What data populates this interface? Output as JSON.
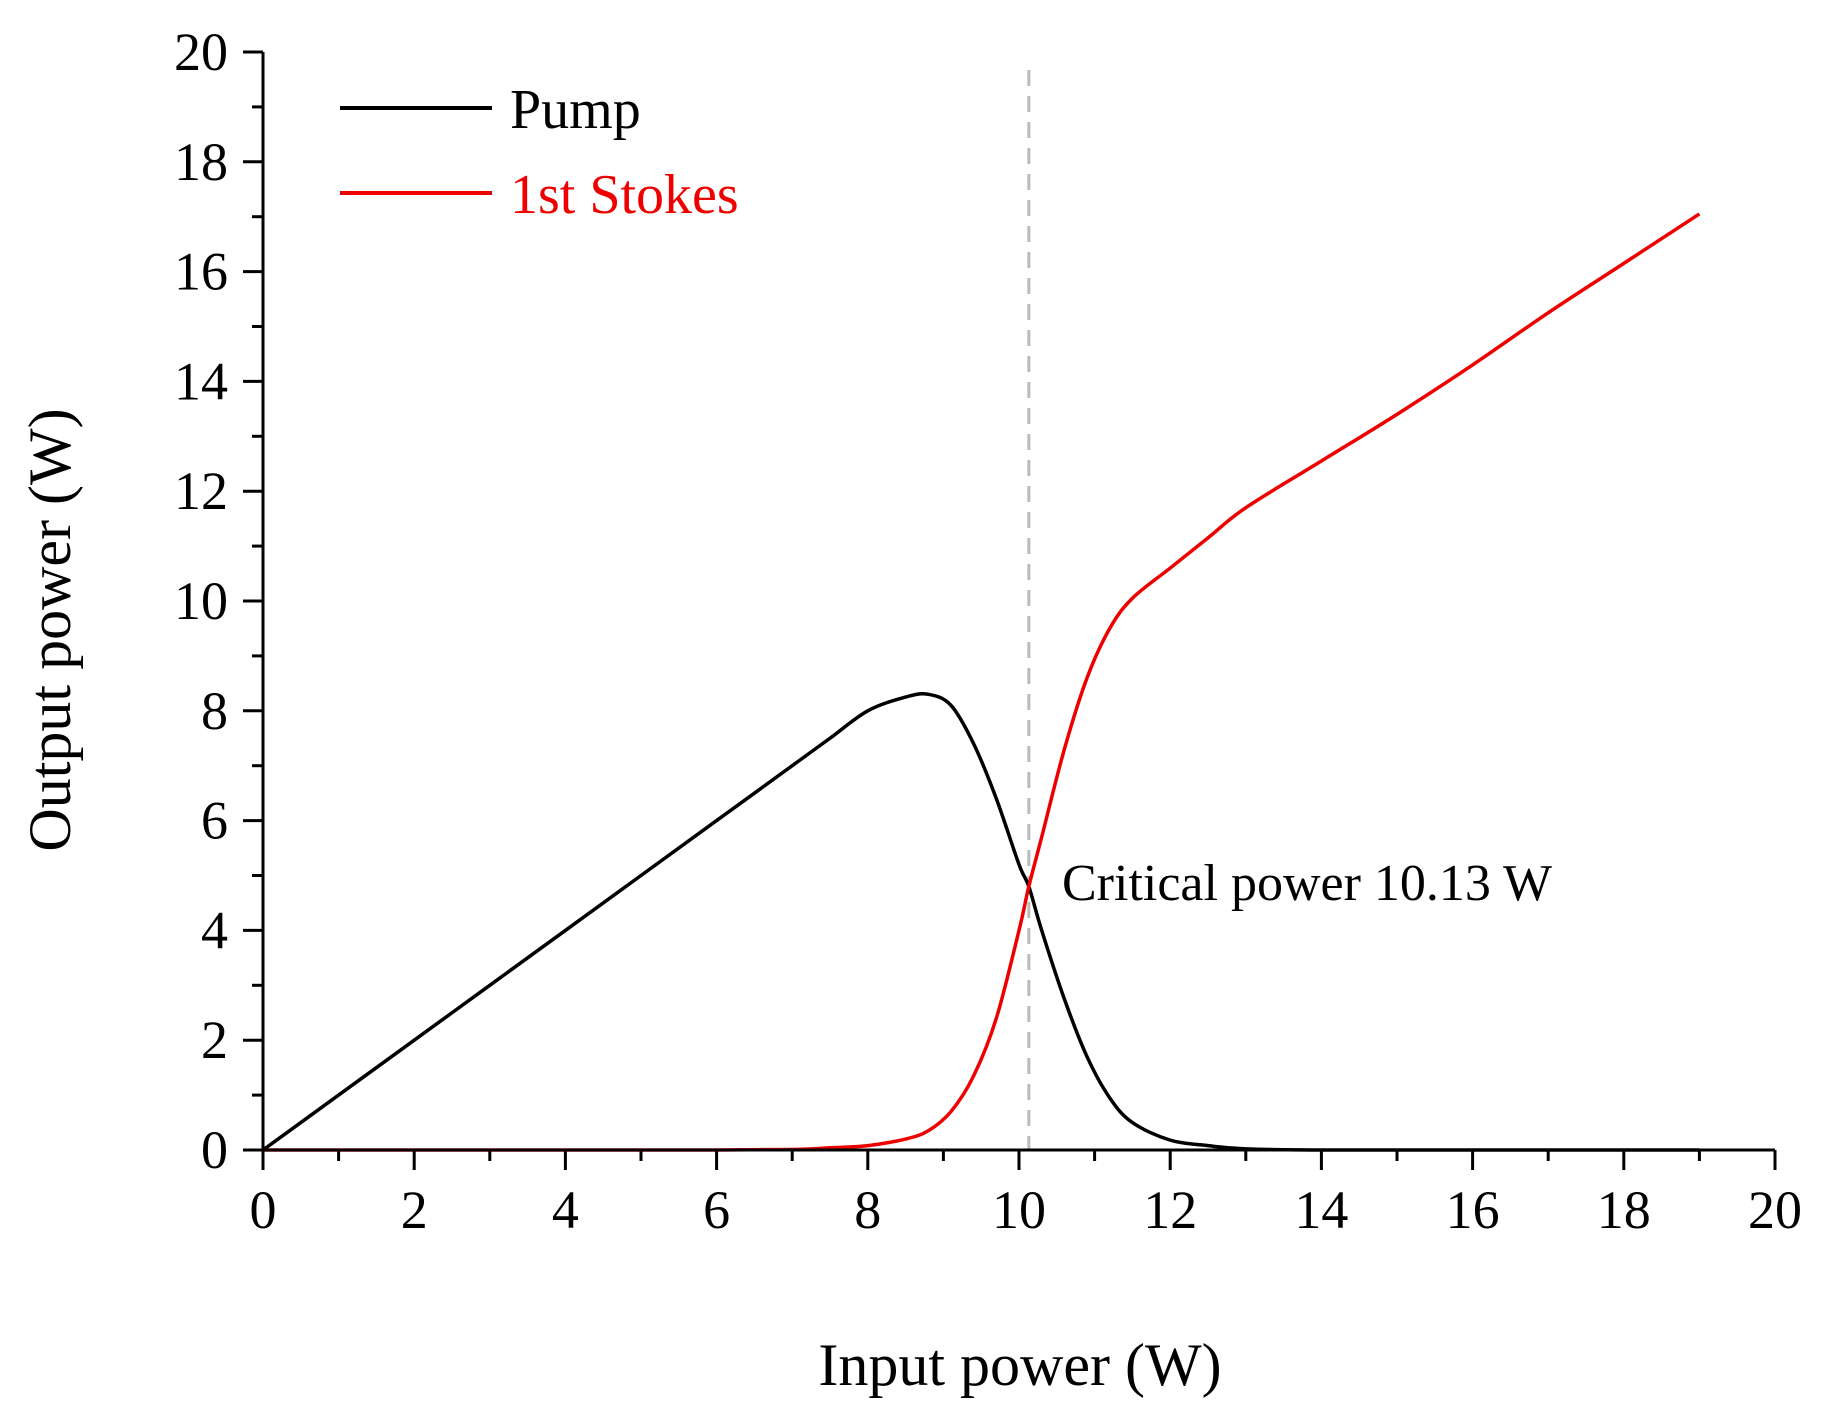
{
  "chart_data": {
    "type": "line",
    "title": "",
    "xlabel": "Input power (W)",
    "ylabel": "Output power (W)",
    "xlim": [
      0,
      20
    ],
    "ylim": [
      0,
      20
    ],
    "xticks": [
      0,
      2,
      4,
      6,
      8,
      10,
      12,
      14,
      16,
      18,
      20
    ],
    "yticks": [
      0,
      2,
      4,
      6,
      8,
      10,
      12,
      14,
      16,
      18,
      20
    ],
    "grid": false,
    "legend_position": "top-left",
    "series": [
      {
        "name": "Pump",
        "color": "#000000",
        "x": [
          0,
          1,
          2,
          3,
          4,
          5,
          6,
          7,
          7.5,
          8,
          8.5,
          8.8,
          9.1,
          9.4,
          9.7,
          10.0,
          10.13,
          10.3,
          10.6,
          10.9,
          11.2,
          11.5,
          12.0,
          12.5,
          13.0,
          14.0,
          16.0,
          19.0
        ],
        "y": [
          0,
          1.0,
          2.0,
          3.0,
          4.0,
          5.0,
          6.0,
          7.0,
          7.5,
          8.0,
          8.25,
          8.3,
          8.1,
          7.4,
          6.4,
          5.2,
          4.8,
          4.0,
          2.75,
          1.7,
          0.95,
          0.5,
          0.18,
          0.08,
          0.02,
          0.0,
          0.0,
          0.0
        ]
      },
      {
        "name": "1st Stokes",
        "color": "#ee0000",
        "x": [
          0,
          2,
          4,
          6,
          7,
          7.5,
          8,
          8.5,
          8.8,
          9.1,
          9.4,
          9.7,
          10.0,
          10.13,
          10.3,
          10.6,
          10.9,
          11.2,
          11.5,
          12.0,
          12.5,
          13.0,
          14.0,
          15.0,
          16.0,
          17.0,
          18.0,
          19.0
        ],
        "y": [
          0,
          0,
          0,
          0,
          0.01,
          0.04,
          0.08,
          0.2,
          0.35,
          0.7,
          1.35,
          2.4,
          4.0,
          4.8,
          5.7,
          7.3,
          8.6,
          9.5,
          10.05,
          10.6,
          11.15,
          11.7,
          12.55,
          13.4,
          14.3,
          15.25,
          16.15,
          17.05
        ]
      }
    ],
    "annotations": [
      {
        "text": "Critical power 10.13 W",
        "x": 10.13,
        "y": 4.8
      }
    ],
    "reference_line": {
      "type": "vertical",
      "x": 10.13,
      "style": "dashed",
      "color": "#bbbbbb"
    }
  }
}
